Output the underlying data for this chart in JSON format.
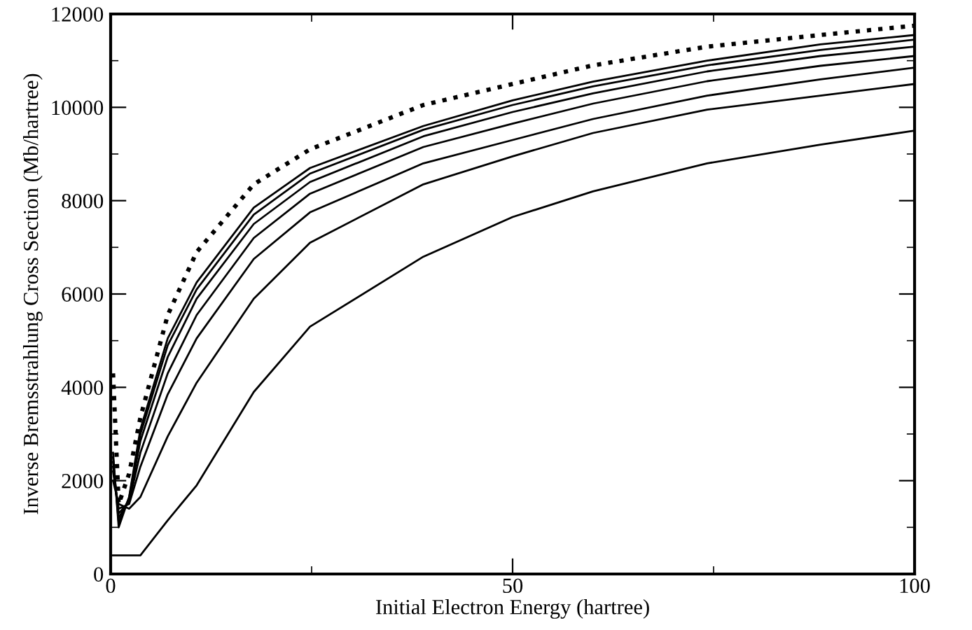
{
  "chart_data": {
    "type": "line",
    "xlabel": "Initial Electron Energy (hartree)",
    "ylabel": "Inverse Bremsstrahlung Cross Section (Mb/hartree)",
    "x": [
      0.3,
      1,
      2.3,
      3.7,
      7.1,
      10.7,
      17.8,
      24.8,
      38.9,
      50,
      60,
      74.2,
      88.3,
      100
    ],
    "series": [
      {
        "color": "#000000",
        "values": [
          400,
          400,
          400,
          400,
          1150,
          1900,
          3900,
          5300,
          6800,
          7650,
          8200,
          8800,
          9200,
          9500
        ]
      },
      {
        "color": "#000000",
        "values": [
          2000,
          1500,
          1400,
          1650,
          2950,
          4100,
          5900,
          7100,
          8350,
          8950,
          9450,
          9950,
          10250,
          10500
        ]
      },
      {
        "color": "#000000",
        "values": [
          2200,
          1400,
          1500,
          2300,
          3850,
          5050,
          6750,
          7750,
          8800,
          9300,
          9750,
          10250,
          10600,
          10850
        ]
      },
      {
        "color": "#000000",
        "values": [
          2300,
          1300,
          1550,
          2600,
          4300,
          5550,
          7200,
          8150,
          9150,
          9650,
          10080,
          10560,
          10890,
          11100
        ]
      },
      {
        "color": "#000000",
        "values": [
          2400,
          1200,
          1600,
          2850,
          4650,
          5900,
          7500,
          8400,
          9380,
          9900,
          10300,
          10770,
          11100,
          11300
        ]
      },
      {
        "color": "#000000",
        "values": [
          2500,
          1100,
          1640,
          3000,
          4900,
          6100,
          7700,
          8580,
          9520,
          10050,
          10450,
          10900,
          11230,
          11450
        ]
      },
      {
        "color": "#000000",
        "values": [
          2600,
          1000,
          1650,
          3100,
          5050,
          6250,
          7850,
          8700,
          9600,
          10150,
          10550,
          11000,
          11350,
          11550
        ]
      },
      {
        "color": "#000000",
        "line_style": "dotted",
        "values": [
          4300,
          1500,
          2150,
          3350,
          5550,
          6900,
          8350,
          9100,
          10050,
          10500,
          10900,
          11300,
          11550,
          11750
        ]
      }
    ],
    "xlim": [
      0,
      100
    ],
    "ylim": [
      0,
      12000
    ],
    "xticks": [
      0,
      {
        "value": 25,
        "label": null
      },
      50,
      {
        "value": 75,
        "label": null
      },
      100
    ],
    "yticks": [
      0,
      {
        "value": 1000,
        "label": null
      },
      2000,
      {
        "value": 3000,
        "label": null
      },
      4000,
      {
        "value": 5000,
        "label": null
      },
      6000,
      {
        "value": 7000,
        "label": null
      },
      8000,
      {
        "value": 9000,
        "label": null
      },
      10000,
      {
        "value": 11000,
        "label": null
      },
      12000
    ],
    "grid": false,
    "legend": false
  }
}
